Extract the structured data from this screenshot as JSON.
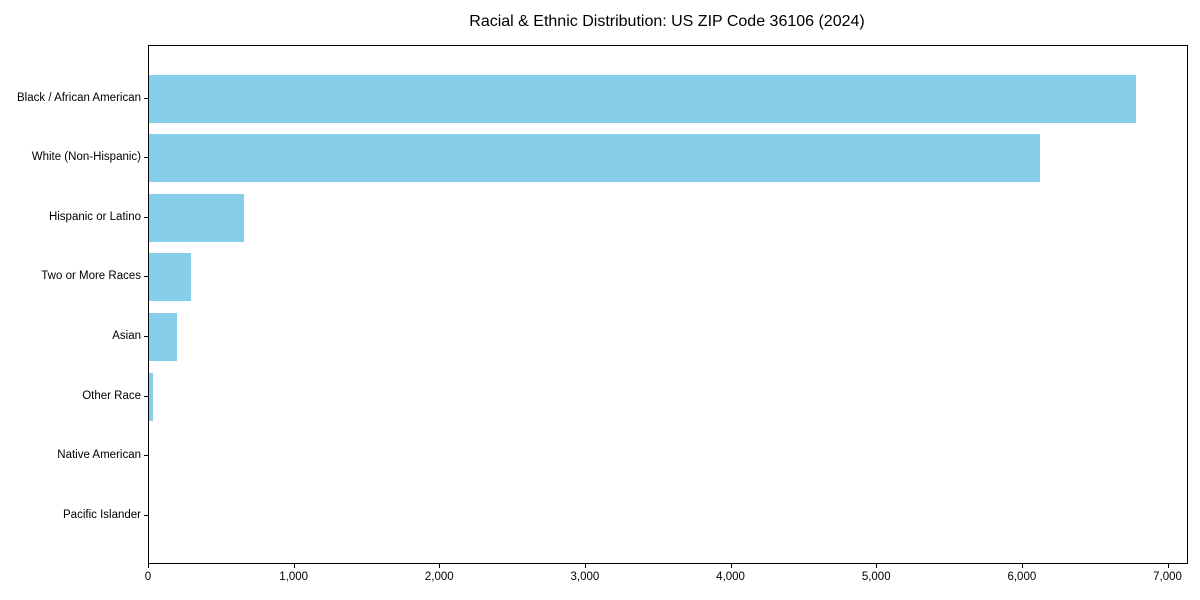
{
  "figure": {
    "background": "#ffffff"
  },
  "chart_data": {
    "type": "bar",
    "orientation": "horizontal",
    "title": "Racial & Ethnic Distribution: US ZIP Code 36106 (2024)",
    "categories": [
      "Black / African American",
      "White (Non-Hispanic)",
      "Hispanic or Latino",
      "Two or More Races",
      "Asian",
      "Other Race",
      "Native American",
      "Pacific Islander"
    ],
    "values": [
      6780,
      6115,
      655,
      290,
      195,
      25,
      0,
      0
    ],
    "xlabel": "",
    "ylabel": "",
    "xlim": [
      0,
      7120
    ],
    "xticks": [
      0,
      1000,
      2000,
      3000,
      4000,
      5000,
      6000,
      7000
    ],
    "xtick_labels": [
      "0",
      "1,000",
      "2,000",
      "3,000",
      "4,000",
      "5,000",
      "6,000",
      "7,000"
    ],
    "bar_color": "#87CEEB",
    "spine_color": "#000000",
    "text_color": "#000000",
    "grid": false,
    "legend": null
  }
}
